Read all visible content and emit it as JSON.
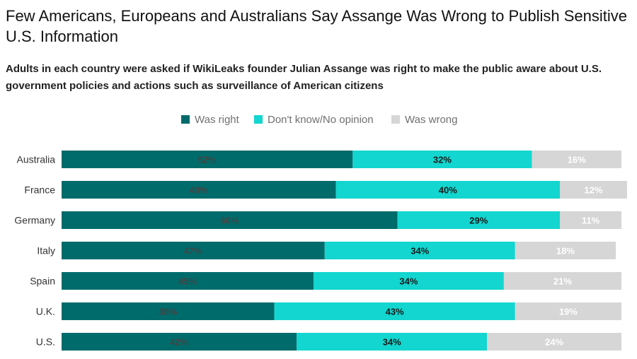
{
  "title": "Few Americans, Europeans and Australians Say Assange Was Wrong to Publish Sensitive U.S. Information",
  "subtitle": "Adults in each country were asked if WikiLeaks founder Julian Assange was right to make the public aware about U.S. government policies and actions such as surveillance of American citizens",
  "legend": [
    {
      "label": "Was right",
      "color": "#006b6b"
    },
    {
      "label": "Don't know/No opinion",
      "color": "#12d6cf"
    },
    {
      "label": "Was wrong",
      "color": "#d6d6d6"
    }
  ],
  "chart_data": {
    "type": "bar",
    "orientation": "horizontal",
    "stacked": true,
    "categories": [
      "Australia",
      "France",
      "Germany",
      "Italy",
      "Spain",
      "U.K.",
      "U.S."
    ],
    "series": [
      {
        "name": "Was right",
        "values": [
          52,
          49,
          60,
          47,
          45,
          38,
          42
        ],
        "labels": [
          "52%",
          "49%",
          "60%",
          "47%",
          "45%",
          "38%",
          "42%"
        ],
        "color": "#006b6b"
      },
      {
        "name": "Don't know/No opinion",
        "values": [
          32,
          40,
          29,
          34,
          34,
          43,
          34
        ],
        "labels": [
          "32%",
          "40%",
          "29%",
          "34%",
          "34%",
          "43%",
          "34%"
        ],
        "color": "#12d6cf"
      },
      {
        "name": "Was wrong",
        "values": [
          16,
          12,
          11,
          18,
          21,
          19,
          24
        ],
        "labels": [
          "16%",
          "12%",
          "11%",
          "18%",
          "21%",
          "19%",
          "24%"
        ],
        "color": "#d6d6d6"
      }
    ],
    "xlim": [
      0,
      100
    ],
    "legend_position": "top-center",
    "grid": false
  }
}
